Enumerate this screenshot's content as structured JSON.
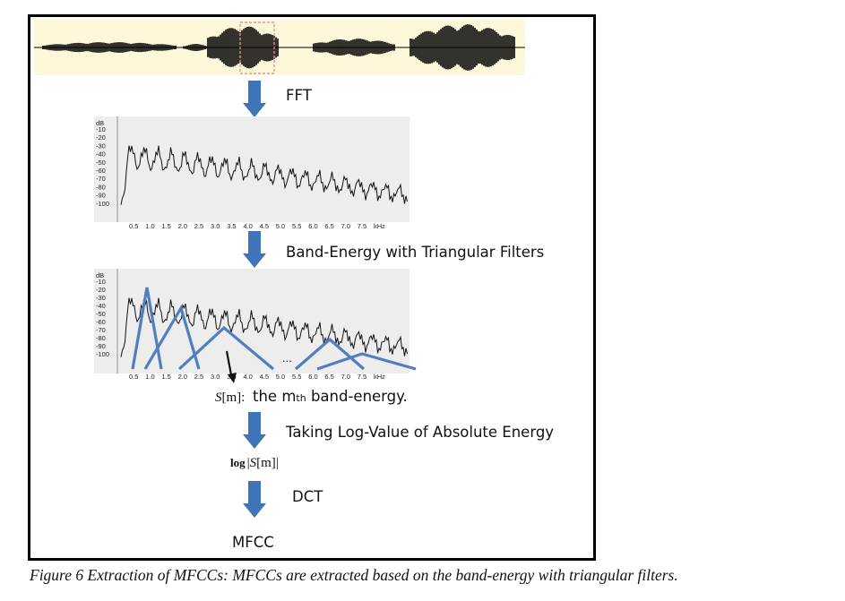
{
  "steps": {
    "fft": "FFT",
    "band_energy": "Band-Energy with Triangular Filters",
    "log": "Taking Log-Value of Absolute Energy",
    "dct": "DCT",
    "output": "MFCC"
  },
  "band_energy_note": {
    "symbol_base": "S",
    "symbol_index": "[m]",
    "colon": ":",
    "prefix": "the m",
    "subscript": "th",
    "suffix": " band-energy."
  },
  "log_expression": {
    "fn": "log",
    "left_bar": "|",
    "symbol": "S",
    "index": "[m]",
    "right_bar": "|"
  },
  "spectrum_axis": {
    "unit_top": "dB",
    "y_ticks": [
      "-10",
      "-20",
      "-30",
      "-40",
      "-50",
      "-60",
      "-70",
      "-80",
      "-90",
      "-100"
    ],
    "x_ticks": [
      "0.5",
      "1.0",
      "1.5",
      "2.0",
      "2.5",
      "3.0",
      "3.5",
      "4.0",
      "4.5",
      "5.0",
      "5.5",
      "6.0",
      "6.5",
      "7.0",
      "7.5",
      "kHz"
    ]
  },
  "filter_ellipsis": "...",
  "colors": {
    "arrow": "#3f74b8",
    "filter": "#4f7fbd",
    "waveform_bg": "#fdf8da",
    "plot_bg": "#ededed",
    "highlight": "#e08080"
  },
  "caption": "Figure 6 Extraction of MFCCs: MFCCs are extracted based on the band-energy with triangular filters."
}
